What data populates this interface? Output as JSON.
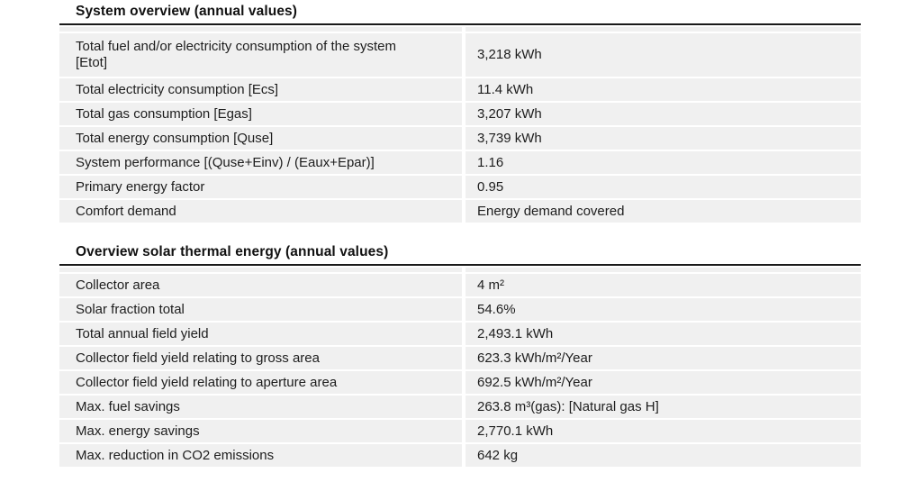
{
  "page": {
    "background": "#ffffff",
    "row_background": "#f0f0f0",
    "rule_color": "#1a1a1a",
    "text_color": "#1d1d1d"
  },
  "sections": [
    {
      "title": "System overview (annual values)",
      "rows": [
        {
          "label": "Total fuel and/or electricity consumption of the system [Etot]",
          "value": "3,218 kWh"
        },
        {
          "label": "Total electricity consumption [Ecs]",
          "value": "11.4 kWh"
        },
        {
          "label": "Total gas consumption [Egas]",
          "value": "3,207 kWh"
        },
        {
          "label": "Total energy consumption [Quse]",
          "value": "3,739 kWh"
        },
        {
          "label": "System performance [(Quse+Einv) / (Eaux+Epar)]",
          "value": "1.16"
        },
        {
          "label": "Primary energy factor",
          "value": "0.95"
        },
        {
          "label": "Comfort demand",
          "value": "Energy demand covered"
        }
      ]
    },
    {
      "title": "Overview solar thermal energy (annual values)",
      "rows": [
        {
          "label": "Collector area",
          "value": "4 m²"
        },
        {
          "label": "Solar fraction total",
          "value": "54.6%"
        },
        {
          "label": "Total annual field yield",
          "value": "2,493.1 kWh"
        },
        {
          "label": "Collector field yield relating to gross area",
          "value": "623.3 kWh/m²/Year"
        },
        {
          "label": "Collector field yield relating to aperture area",
          "value": "692.5 kWh/m²/Year"
        },
        {
          "label": "Max. fuel savings",
          "value": "263.8 m³(gas): [Natural gas H]"
        },
        {
          "label": "Max. energy savings",
          "value": "2,770.1 kWh"
        },
        {
          "label": "Max. reduction in CO2 emissions",
          "value": "642 kg"
        }
      ]
    }
  ]
}
